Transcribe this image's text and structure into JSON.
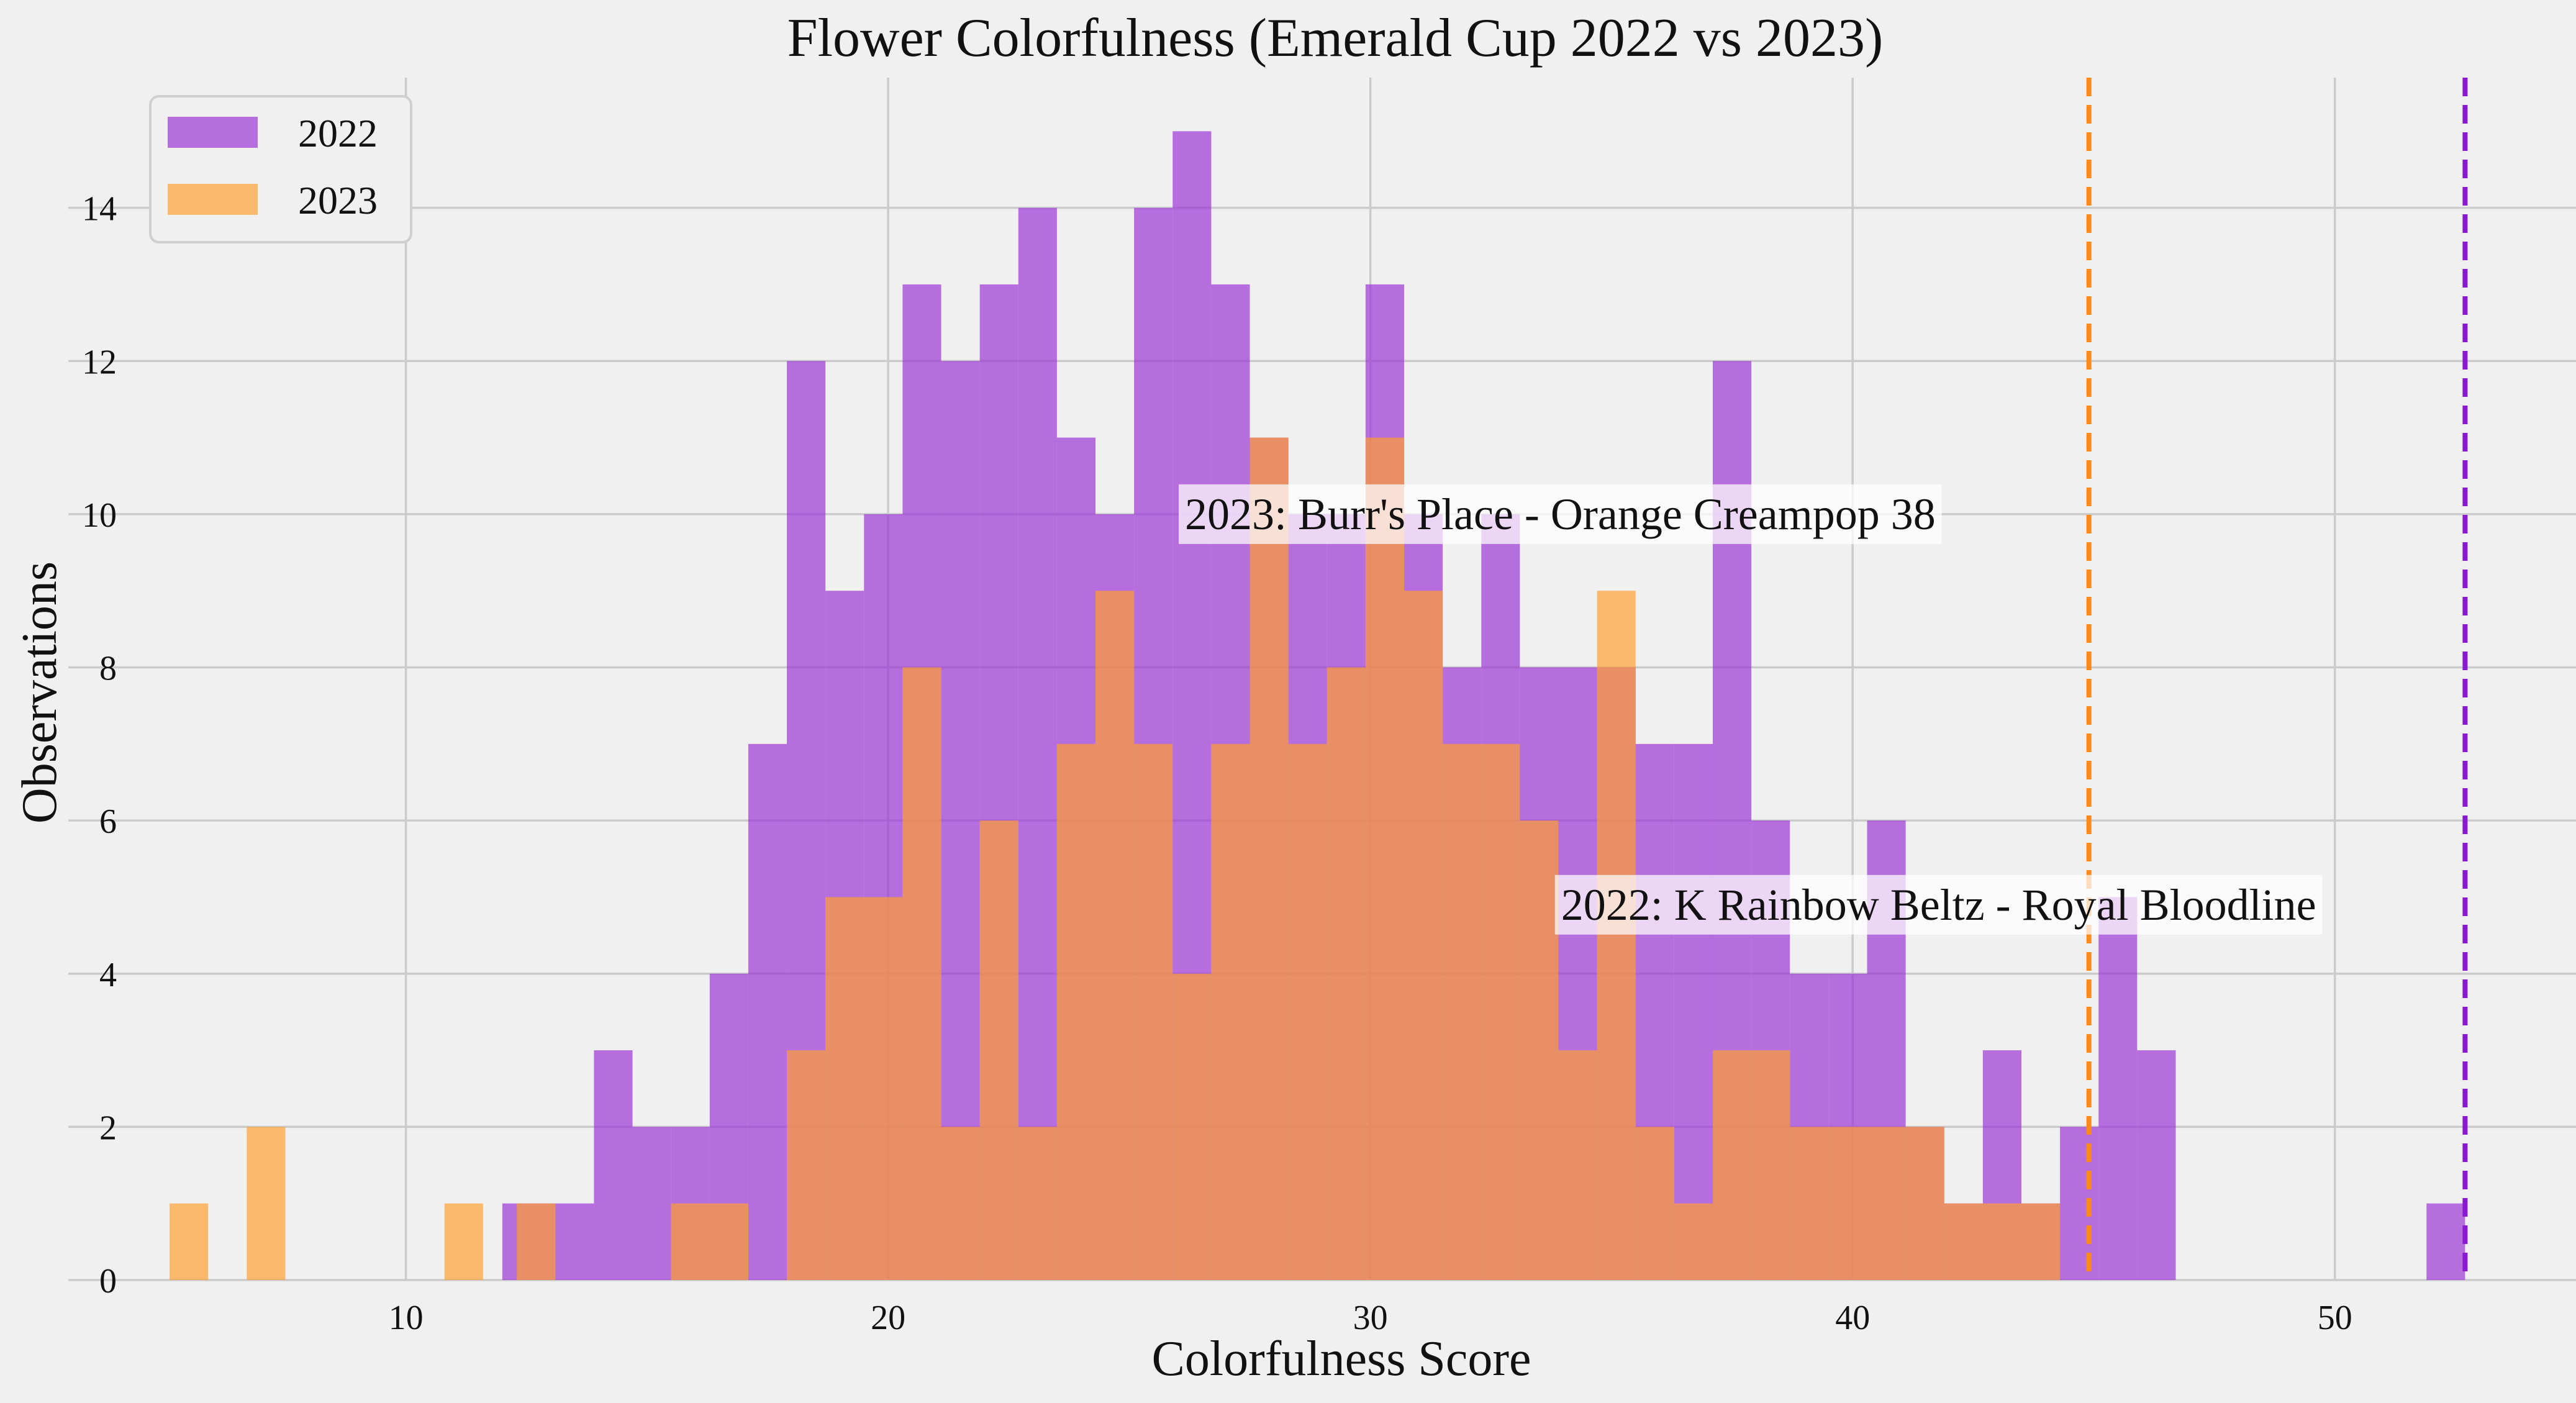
{
  "chart_data": {
    "type": "histogram",
    "title": "Flower Colorfulness (Emerald Cup 2022 vs 2023)",
    "xlabel": "Colorfulness Score",
    "ylabel": "Observations",
    "xlim": [
      3,
      55
    ],
    "ylim": [
      0,
      15.7
    ],
    "xticks": [
      10,
      20,
      30,
      40,
      50
    ],
    "yticks": [
      0,
      2,
      4,
      6,
      8,
      10,
      12,
      14
    ],
    "grid": true,
    "legend_position": "top-left",
    "series": [
      {
        "name": "2022",
        "color": "#9b2fd6",
        "opacity": 0.68,
        "bins": [
          [
            12.0,
            13.1,
            1
          ],
          [
            13.1,
            13.9,
            1
          ],
          [
            13.9,
            14.7,
            3
          ],
          [
            14.7,
            15.5,
            2
          ],
          [
            15.5,
            16.3,
            2
          ],
          [
            16.3,
            17.1,
            4
          ],
          [
            17.1,
            17.9,
            7
          ],
          [
            17.9,
            18.7,
            12
          ],
          [
            18.7,
            19.5,
            9
          ],
          [
            19.5,
            20.3,
            10
          ],
          [
            20.3,
            21.1,
            13
          ],
          [
            21.1,
            21.9,
            12
          ],
          [
            21.9,
            22.7,
            13
          ],
          [
            22.7,
            23.5,
            14
          ],
          [
            23.5,
            24.3,
            11
          ],
          [
            24.3,
            25.1,
            10
          ],
          [
            25.1,
            25.9,
            14
          ],
          [
            25.9,
            26.7,
            15
          ],
          [
            26.7,
            27.5,
            13
          ],
          [
            27.5,
            28.3,
            11
          ],
          [
            28.3,
            29.1,
            10
          ],
          [
            29.1,
            29.9,
            10
          ],
          [
            29.9,
            30.7,
            13
          ],
          [
            30.7,
            31.5,
            10
          ],
          [
            31.5,
            32.3,
            8
          ],
          [
            32.3,
            33.1,
            10
          ],
          [
            33.1,
            33.9,
            8
          ],
          [
            33.9,
            34.7,
            8
          ],
          [
            34.7,
            35.5,
            8
          ],
          [
            35.5,
            36.3,
            7
          ],
          [
            36.3,
            37.1,
            7
          ],
          [
            37.1,
            37.9,
            12
          ],
          [
            37.9,
            38.7,
            6
          ],
          [
            38.7,
            39.5,
            4
          ],
          [
            39.5,
            40.3,
            4
          ],
          [
            40.3,
            41.1,
            6
          ],
          [
            41.1,
            41.9,
            2
          ],
          [
            41.9,
            42.7,
            1
          ],
          [
            42.7,
            43.5,
            3
          ],
          [
            43.5,
            44.3,
            1
          ],
          [
            44.3,
            45.1,
            2
          ],
          [
            45.1,
            45.9,
            5
          ],
          [
            45.9,
            46.7,
            3
          ],
          [
            46.7,
            47.5,
            0
          ],
          [
            51.9,
            52.7,
            1
          ]
        ]
      },
      {
        "name": "2023",
        "color": "#ff9f2e",
        "opacity": 0.68,
        "bins": [
          [
            5.1,
            5.9,
            1
          ],
          [
            6.7,
            7.5,
            2
          ],
          [
            10.8,
            11.6,
            1
          ],
          [
            12.3,
            13.1,
            1
          ],
          [
            15.5,
            17.1,
            1
          ],
          [
            17.9,
            18.7,
            3
          ],
          [
            18.7,
            20.3,
            5
          ],
          [
            20.3,
            21.1,
            8
          ],
          [
            21.1,
            21.9,
            2
          ],
          [
            21.9,
            22.7,
            6
          ],
          [
            22.7,
            23.5,
            2
          ],
          [
            23.5,
            24.3,
            7
          ],
          [
            24.3,
            25.1,
            9
          ],
          [
            25.1,
            25.9,
            7
          ],
          [
            25.9,
            26.7,
            4
          ],
          [
            26.7,
            27.5,
            7
          ],
          [
            27.5,
            28.3,
            11
          ],
          [
            28.3,
            29.1,
            7
          ],
          [
            29.1,
            29.9,
            8
          ],
          [
            29.9,
            30.7,
            11
          ],
          [
            30.7,
            31.5,
            9
          ],
          [
            31.5,
            32.3,
            7
          ],
          [
            32.3,
            33.1,
            7
          ],
          [
            33.1,
            33.9,
            6
          ],
          [
            33.9,
            34.7,
            3
          ],
          [
            34.7,
            35.5,
            9
          ],
          [
            35.5,
            36.3,
            2
          ],
          [
            36.3,
            37.1,
            1
          ],
          [
            37.1,
            37.9,
            3
          ],
          [
            37.9,
            38.7,
            3
          ],
          [
            38.7,
            39.5,
            2
          ],
          [
            39.5,
            40.3,
            2
          ],
          [
            40.3,
            41.1,
            2
          ],
          [
            41.1,
            41.9,
            2
          ],
          [
            41.9,
            44.3,
            1
          ]
        ]
      }
    ],
    "vlines": [
      {
        "x": 44.9,
        "color": "#ff8a1a",
        "style": "dashed"
      },
      {
        "x": 52.7,
        "color": "#8b19d1",
        "style": "dashed"
      }
    ],
    "annotations": [
      {
        "text": "2023: Burr's Place - Orange Creampop 38",
        "x": 26.0,
        "y": 10.0
      },
      {
        "text": "2022: K Rainbow Beltz - Royal Bloodline",
        "x": 33.8,
        "y": 4.9
      }
    ]
  }
}
